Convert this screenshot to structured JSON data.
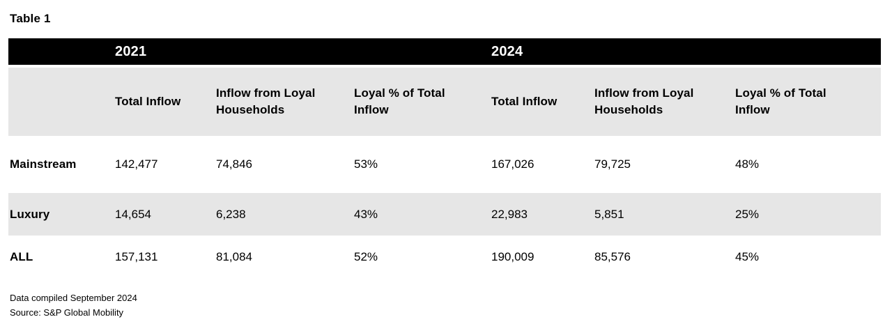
{
  "title": "Table 1",
  "table": {
    "year_groups": [
      {
        "label": "2021"
      },
      {
        "label": "2024"
      }
    ],
    "columns": [
      "Total Inflow",
      "Inflow from Loyal Households",
      "Loyal % of Total Inflow",
      "Total Inflow",
      "Inflow from Loyal Households",
      "Loyal % of Total Inflow"
    ],
    "rows": [
      {
        "label": "Mainstream",
        "values": [
          "142,477",
          "74,846",
          "53%",
          "167,026",
          "79,725",
          "48%"
        ]
      },
      {
        "label": "Luxury",
        "values": [
          "14,654",
          "6,238",
          "43%",
          "22,983",
          "5,851",
          "25%"
        ]
      },
      {
        "label": "ALL",
        "values": [
          "157,131",
          "81,084",
          "52%",
          "190,009",
          "85,576",
          "45%"
        ]
      }
    ]
  },
  "footer": {
    "compiled": "Data compiled September 2024",
    "source": "Source: S&P Global Mobility"
  },
  "colors": {
    "year_band_bg": "#000000",
    "year_band_text": "#ffffff",
    "header_row_bg": "#e6e6e6",
    "alt_row_bg": "#e6e6e6",
    "text": "#000000",
    "page_bg": "#ffffff"
  }
}
